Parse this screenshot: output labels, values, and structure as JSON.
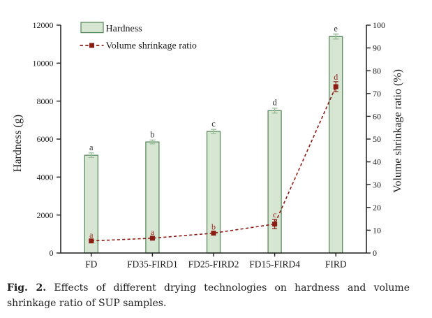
{
  "figure": {
    "caption": {
      "label": "Fig. 2.",
      "line1_rest": "Effects of different drying technologies on hardness and volume",
      "line2": "shrinkage ratio of SUP samples."
    }
  },
  "chart_data": {
    "type": "bar",
    "categories": [
      "FD",
      "FD35-FIRD1",
      "FD25-FIRD2",
      "FD15-FIRD4",
      "FIRD"
    ],
    "series": [
      {
        "name": "Hardness",
        "type": "bar",
        "axis": "left",
        "values": [
          5150,
          5850,
          6400,
          7500,
          11400
        ],
        "errors": [
          120,
          100,
          110,
          130,
          130
        ],
        "letters": [
          "a",
          "b",
          "c",
          "d",
          "e"
        ]
      },
      {
        "name": "Volume shrinkage ratio",
        "type": "line",
        "axis": "right",
        "values": [
          5.3,
          6.5,
          8.7,
          12.7,
          73.0
        ],
        "errors": [
          0.5,
          0.5,
          0.6,
          2.0,
          2.2
        ],
        "letters": [
          "a",
          "a",
          "b",
          "c",
          "d"
        ]
      }
    ],
    "left_axis": {
      "label": "Hardness (g)",
      "min": 0,
      "max": 12000,
      "step": 2000
    },
    "right_axis": {
      "label": "Volume shrinkage ratio (%)",
      "min": 0,
      "max": 100,
      "step": 10
    },
    "legend": [
      {
        "label": "Hardness",
        "marker": "bar"
      },
      {
        "label": "Volume shrinkage ratio",
        "marker": "line"
      }
    ],
    "grid": false,
    "legend_position": "upper-left",
    "colors": {
      "bar_fill": "#d7e6d3",
      "bar_edge": "#5d8c60",
      "bar_error": "#9cc09c",
      "line": "#8c1d15",
      "marker": "#8c1d15",
      "line_letter": "#96231a",
      "bar_letter": "#333333",
      "axis": "#1c1c1c"
    }
  }
}
